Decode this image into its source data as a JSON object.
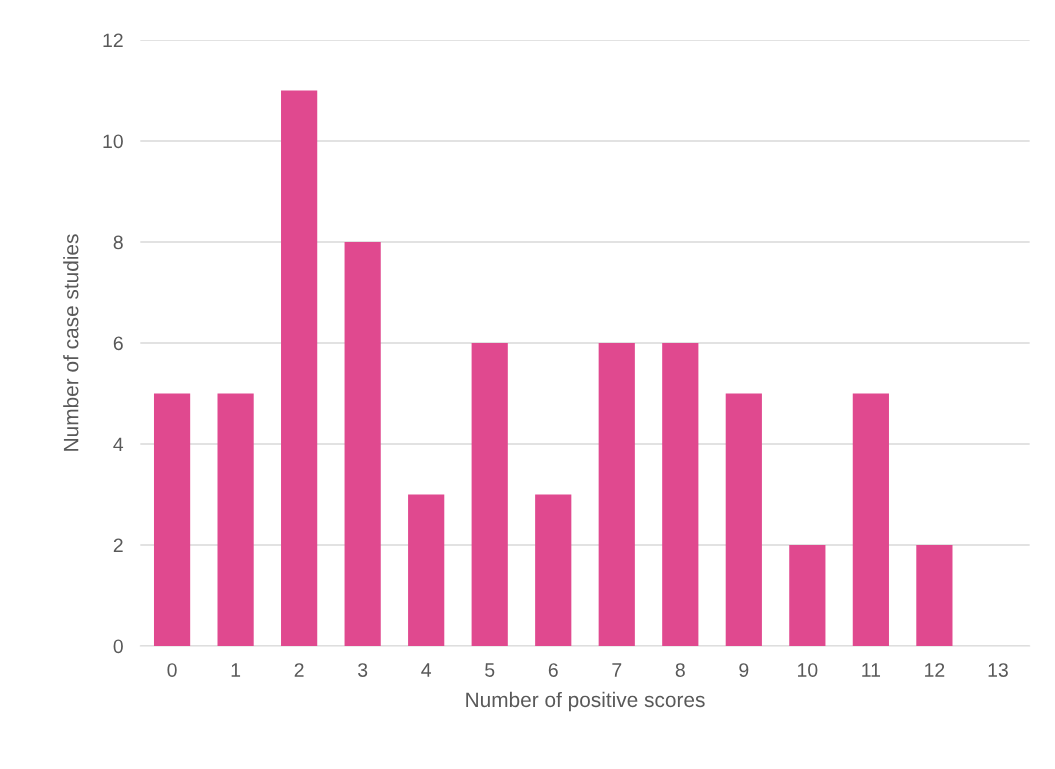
{
  "chart_data": {
    "type": "bar",
    "xlabel": "Number of positive scores",
    "ylabel": "Number of case studies",
    "categories": [
      "0",
      "1",
      "2",
      "3",
      "4",
      "5",
      "6",
      "7",
      "8",
      "9",
      "10",
      "11",
      "12",
      "13"
    ],
    "values": [
      5,
      5,
      11,
      8,
      3,
      6,
      3,
      6,
      6,
      5,
      2,
      5,
      2,
      0
    ],
    "color": "#e0498f",
    "ylim": [
      0,
      12
    ],
    "yticks": [
      0,
      2,
      4,
      6,
      8,
      10,
      12
    ],
    "grid": "y",
    "legend": false
  }
}
